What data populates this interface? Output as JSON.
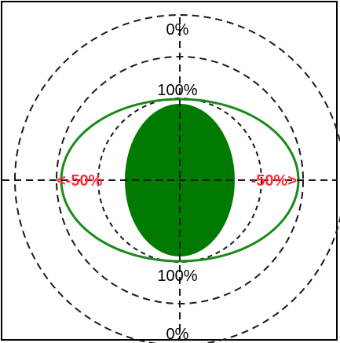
{
  "labels": {
    "top": "0%",
    "upper": "100%",
    "lower": "100%",
    "bottom": "0%",
    "left": "<-50%",
    "right": "-50%>"
  },
  "colors": {
    "outline": "#1a8a1a",
    "fill": "#007a00",
    "dash": "#1a1a1a",
    "label_red": "#ff2a3a",
    "label_black": "#000000"
  }
}
